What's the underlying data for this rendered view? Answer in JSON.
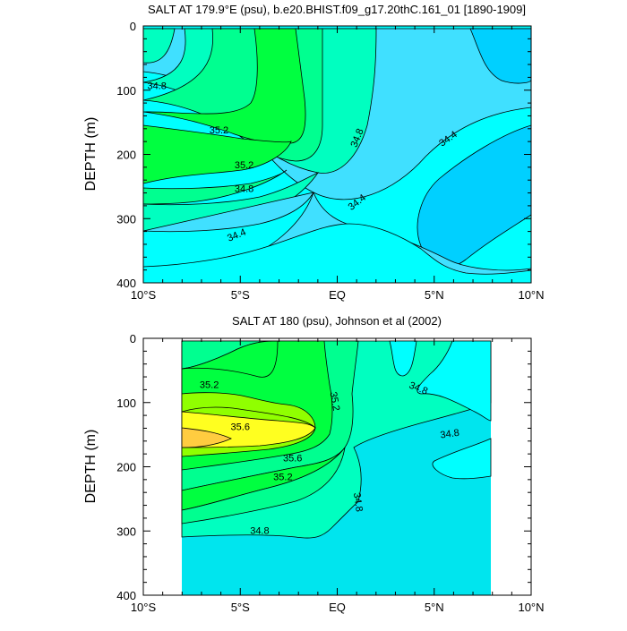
{
  "colors": {
    "s34_0": "#00e5ee",
    "s34_2": "#00ffff",
    "s34_4": "#40e0ff",
    "s34_6": "#00d0ff",
    "s34_8": "#00ffc0",
    "s35_0": "#00ff90",
    "s35_2": "#00ff40",
    "s35_4": "#90ff00",
    "s35_6": "#ffff20",
    "s35_8": "#ffcc40"
  },
  "chart_data": [
    {
      "type": "contour",
      "title": "SALT AT 179.9°E (psu), b.e20.BHIST.f09_g17.20thC.161_01 [1890-1909]",
      "ylabel": "DEPTH (m)",
      "x_ticks": [
        "10°S",
        "5°S",
        "EQ",
        "5°N",
        "10°N"
      ],
      "x_tick_values": [
        -10,
        -5,
        0,
        5,
        10
      ],
      "y_ticks": [
        "0",
        "100",
        "200",
        "300",
        "400"
      ],
      "y_tick_values": [
        0,
        100,
        200,
        300,
        400
      ],
      "xlim": [
        -10,
        10
      ],
      "ylim": [
        400,
        0
      ],
      "y_inverted": true,
      "data_range": {
        "x": [
          -10,
          10
        ],
        "depth": [
          5,
          375
        ]
      },
      "contour_levels": [
        34.4,
        34.6,
        34.8,
        35.0,
        35.2
      ],
      "contour_labels": [
        {
          "text": "34.8",
          "x": -9.3,
          "y": 93,
          "angle": 0
        },
        {
          "text": "35.2",
          "x": -6.1,
          "y": 162,
          "angle": 0
        },
        {
          "text": "35.2",
          "x": -4.8,
          "y": 216,
          "angle": 0
        },
        {
          "text": "34.8",
          "x": -4.8,
          "y": 253,
          "angle": 0
        },
        {
          "text": "34.4",
          "x": -5.2,
          "y": 325,
          "angle": -22
        },
        {
          "text": "34.8",
          "x": 1.0,
          "y": 174,
          "angle": -68
        },
        {
          "text": "34.4",
          "x": 1.0,
          "y": 274,
          "angle": -38
        },
        {
          "text": "34.4",
          "x": 5.7,
          "y": 175,
          "angle": -35
        }
      ]
    },
    {
      "type": "contour",
      "title": "SALT AT 180 (psu), Johnson et al (2002)",
      "ylabel": "DEPTH (m)",
      "x_ticks": [
        "10°S",
        "5°S",
        "EQ",
        "5°N",
        "10°N"
      ],
      "x_tick_values": [
        -10,
        -5,
        0,
        5,
        10
      ],
      "y_ticks": [
        "0",
        "100",
        "200",
        "300",
        "400"
      ],
      "y_tick_values": [
        0,
        100,
        200,
        300,
        400
      ],
      "xlim": [
        -10,
        10
      ],
      "ylim": [
        400,
        0
      ],
      "y_inverted": true,
      "data_range": {
        "x": [
          -8,
          8
        ],
        "depth": [
          5,
          400
        ]
      },
      "contour_levels": [
        34.8,
        35.0,
        35.2,
        35.4,
        35.6,
        35.8
      ],
      "contour_labels": [
        {
          "text": "35.2",
          "x": -6.6,
          "y": 72,
          "angle": 0
        },
        {
          "text": "35.6",
          "x": -5.0,
          "y": 137,
          "angle": 0
        },
        {
          "text": "35.6",
          "x": -2.3,
          "y": 186,
          "angle": 0
        },
        {
          "text": "35.2",
          "x": -2.8,
          "y": 215,
          "angle": 0
        },
        {
          "text": "35.2",
          "x": -0.1,
          "y": 98,
          "angle": 80
        },
        {
          "text": "34.8",
          "x": 4.2,
          "y": 77,
          "angle": 22
        },
        {
          "text": "34.8",
          "x": 5.8,
          "y": 148,
          "angle": -8
        },
        {
          "text": "34.8",
          "x": 1.1,
          "y": 255,
          "angle": 82
        },
        {
          "text": "34.8",
          "x": -4.0,
          "y": 299,
          "angle": 0
        }
      ]
    }
  ]
}
